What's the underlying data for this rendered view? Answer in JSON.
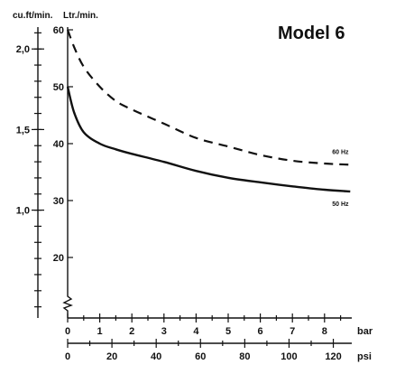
{
  "chart_data": {
    "type": "line",
    "title": "Model 6",
    "left_axis_unit": "cu.ft/min.",
    "y_axis_unit": "Ltr./min.",
    "x_axis_bar_unit": "bar",
    "x_axis_psi_unit": "psi",
    "y_ticks": [
      20,
      30,
      40,
      50,
      60
    ],
    "y_tick_labels": [
      "20",
      "30",
      "40",
      "50",
      "60"
    ],
    "cuft_ticks": [
      1.0,
      1.5,
      2.0
    ],
    "cuft_tick_labels": [
      "1,0",
      "1,5",
      "2,0"
    ],
    "x_bar_ticks": [
      0,
      1,
      2,
      3,
      4,
      5,
      6,
      7,
      8
    ],
    "x_bar_tick_labels": [
      "0",
      "1",
      "2",
      "3",
      "4",
      "5",
      "6",
      "7",
      "8"
    ],
    "x_psi_ticks": [
      0,
      20,
      40,
      60,
      80,
      100,
      120
    ],
    "x_psi_tick_labels": [
      "0",
      "20",
      "40",
      "60",
      "80",
      "100",
      "120"
    ],
    "xlim": [
      0,
      8.8
    ],
    "ylim": [
      10,
      60
    ],
    "series": [
      {
        "name": "60 Hz",
        "style": "dashed",
        "x": [
          0,
          0.2,
          0.5,
          1,
          1.5,
          2,
          3,
          4,
          5,
          6,
          7,
          8,
          8.8
        ],
        "values": [
          60,
          57,
          53.5,
          50,
          47.5,
          46,
          43.5,
          41,
          39.5,
          38,
          37,
          36.5,
          36.3
        ]
      },
      {
        "name": "50 Hz",
        "style": "solid",
        "x": [
          0,
          0.2,
          0.5,
          1,
          1.5,
          2,
          3,
          4,
          5,
          6,
          7,
          8,
          8.8
        ],
        "values": [
          50,
          45.5,
          42,
          40,
          39,
          38.2,
          36.8,
          35.2,
          34,
          33.2,
          32.5,
          31.9,
          31.6
        ]
      }
    ]
  }
}
